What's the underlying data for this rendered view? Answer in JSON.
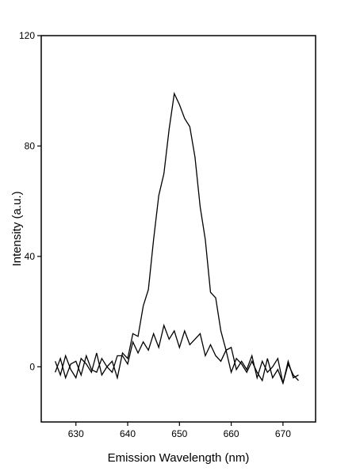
{
  "chart_data": {
    "type": "line",
    "x_label": "Emission Wavelength (nm)",
    "y_label": "Intensity (a.u.)",
    "x": [
      626,
      627,
      628,
      629,
      630,
      631,
      632,
      633,
      634,
      635,
      636,
      637,
      638,
      639,
      640,
      641,
      642,
      643,
      644,
      645,
      646,
      647,
      648,
      649,
      650,
      651,
      652,
      653,
      654,
      655,
      656,
      657,
      658,
      659,
      660,
      661,
      662,
      663,
      664,
      665,
      666,
      667,
      668,
      669,
      670,
      671,
      672,
      673
    ],
    "series": [
      {
        "color": "#000000",
        "values": [
          2,
          -3,
          4,
          -1,
          -4,
          3,
          1,
          -2,
          5,
          -3,
          0,
          2,
          -4,
          5,
          3,
          12,
          11,
          22,
          28,
          46,
          62,
          70,
          86,
          99,
          95,
          90,
          87,
          76,
          58,
          46,
          27,
          25,
          13,
          6,
          7,
          -1,
          2,
          -1,
          4,
          -4,
          2,
          -2,
          0,
          3,
          -6,
          1,
          -3,
          -5
        ]
      },
      {
        "color": "#000000",
        "values": [
          -2,
          3,
          -4,
          1,
          2,
          -3,
          4,
          -1,
          -2,
          3,
          0,
          -2,
          4,
          4,
          1,
          9,
          5,
          9,
          6,
          12,
          7,
          15,
          10,
          13,
          7,
          13,
          8,
          10,
          12,
          4,
          8,
          4,
          2,
          6,
          -2,
          3,
          1,
          -2,
          2,
          -2,
          -5,
          3,
          -4,
          -1,
          -6,
          2,
          -4,
          -3
        ]
      }
    ],
    "xlim": [
      623.3,
      676.3
    ],
    "ylim": [
      -20,
      120
    ],
    "xticks": [
      630,
      640,
      650,
      660,
      670
    ],
    "yticks": [
      0,
      40,
      80,
      120
    ]
  }
}
